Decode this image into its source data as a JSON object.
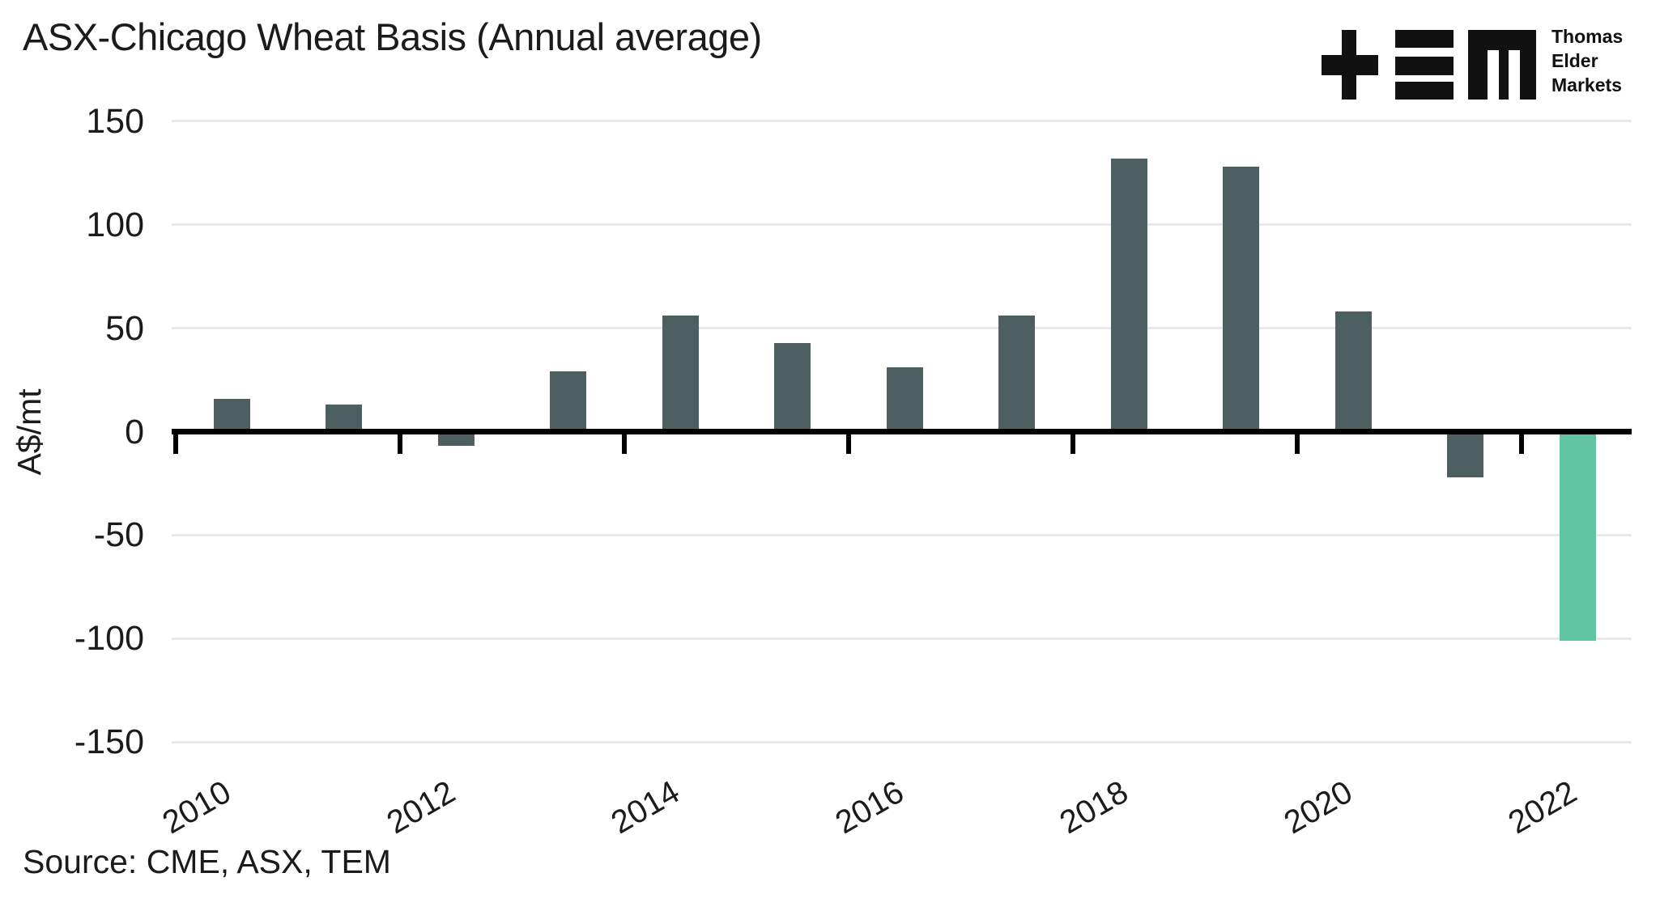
{
  "title": "ASX-Chicago Wheat Basis (Annual average)",
  "source": "Source: CME, ASX, TEM",
  "logo": {
    "lines": [
      "Thomas",
      "Elder",
      "Markets"
    ]
  },
  "y_axis": {
    "title": "A$/mt",
    "tick_labels": [
      "150",
      "100",
      "50",
      "0",
      "-50",
      "-100",
      "-150"
    ]
  },
  "x_axis": {
    "tick_labels": [
      "2010",
      "2012",
      "2014",
      "2016",
      "2018",
      "2020",
      "2022"
    ]
  },
  "colors": {
    "bar_default": "#4d5f61",
    "bar_highlight": "#61c5a3",
    "gridline": "#e9e9e9",
    "axis": "#000000",
    "text": "#1b1b1b"
  },
  "chart_data": {
    "type": "bar",
    "title": "ASX-Chicago Wheat Basis (Annual average)",
    "ylabel": "A$/mt",
    "categories": [
      2010,
      2011,
      2012,
      2013,
      2014,
      2015,
      2016,
      2017,
      2018,
      2019,
      2020,
      2021,
      2022
    ],
    "values": [
      16,
      13,
      -7,
      29,
      56,
      43,
      31,
      56,
      132,
      128,
      58,
      -22,
      -101
    ],
    "highlight_category": 2022,
    "ylim": [
      -150,
      150
    ],
    "yticks": [
      150,
      100,
      50,
      0,
      -50,
      -100,
      -150
    ],
    "xtick_years": [
      2010,
      2012,
      2014,
      2016,
      2018,
      2020,
      2022
    ],
    "grid": "horizontal",
    "legend": "none",
    "source": "Source: CME, ASX, TEM"
  }
}
